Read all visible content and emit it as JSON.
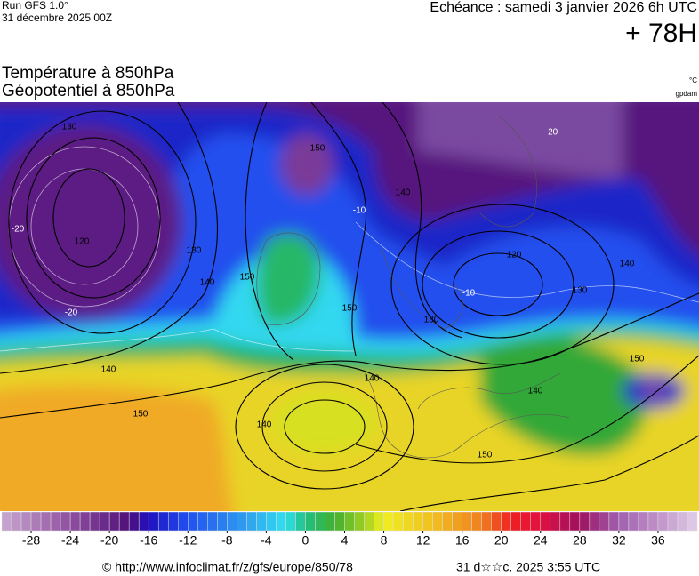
{
  "header": {
    "run": "Run GFS 1.0°",
    "run_date": "31 décembre 2025 00Z",
    "forecast": "Echéance : samedi 3 janvier 2026 6h UTC",
    "lead": "+ 78H"
  },
  "titles": {
    "temperature": "Température à 850hPa",
    "geopotential": "Géopotentiel à 850hPa",
    "temperature_unit": "°C",
    "geopotential_unit": "gpdam"
  },
  "map": {
    "geopotential_labels": [
      130,
      120,
      130,
      140,
      150,
      140,
      150,
      140,
      140,
      150,
      140,
      150,
      130,
      120,
      130,
      140,
      140,
      150,
      150
    ],
    "temperature_labels": [
      -20,
      -20,
      -10,
      -20,
      -10
    ]
  },
  "colorbar": {
    "range": [
      -31,
      40
    ],
    "step": 1,
    "ticks": [
      -28,
      -24,
      -20,
      -16,
      -12,
      -8,
      -4,
      0,
      4,
      8,
      12,
      16,
      20,
      24,
      28,
      32,
      36
    ],
    "stops": [
      {
        "value": -31,
        "color": "#c8a8d0"
      },
      {
        "value": -24,
        "color": "#9050a0"
      },
      {
        "value": -18,
        "color": "#50107a"
      },
      {
        "value": -16,
        "color": "#2010c0"
      },
      {
        "value": -12,
        "color": "#2050f0"
      },
      {
        "value": -6,
        "color": "#30a0f0"
      },
      {
        "value": -2,
        "color": "#30e0f0"
      },
      {
        "value": 0,
        "color": "#20c080"
      },
      {
        "value": 3,
        "color": "#40b030"
      },
      {
        "value": 6,
        "color": "#a0d020"
      },
      {
        "value": 8,
        "color": "#f0f020"
      },
      {
        "value": 13,
        "color": "#f0c020"
      },
      {
        "value": 18,
        "color": "#f08020"
      },
      {
        "value": 21,
        "color": "#f02020"
      },
      {
        "value": 24,
        "color": "#e01040"
      },
      {
        "value": 28,
        "color": "#a01060"
      },
      {
        "value": 32,
        "color": "#a060b0"
      },
      {
        "value": 36,
        "color": "#c090c8"
      },
      {
        "value": 40,
        "color": "#e0d0e8"
      }
    ]
  },
  "footer": {
    "source": "© http://www.infoclimat.fr/z/gfs/europe/850/78",
    "generated": "31 d☆☆c. 2025  3:55 UTC"
  }
}
